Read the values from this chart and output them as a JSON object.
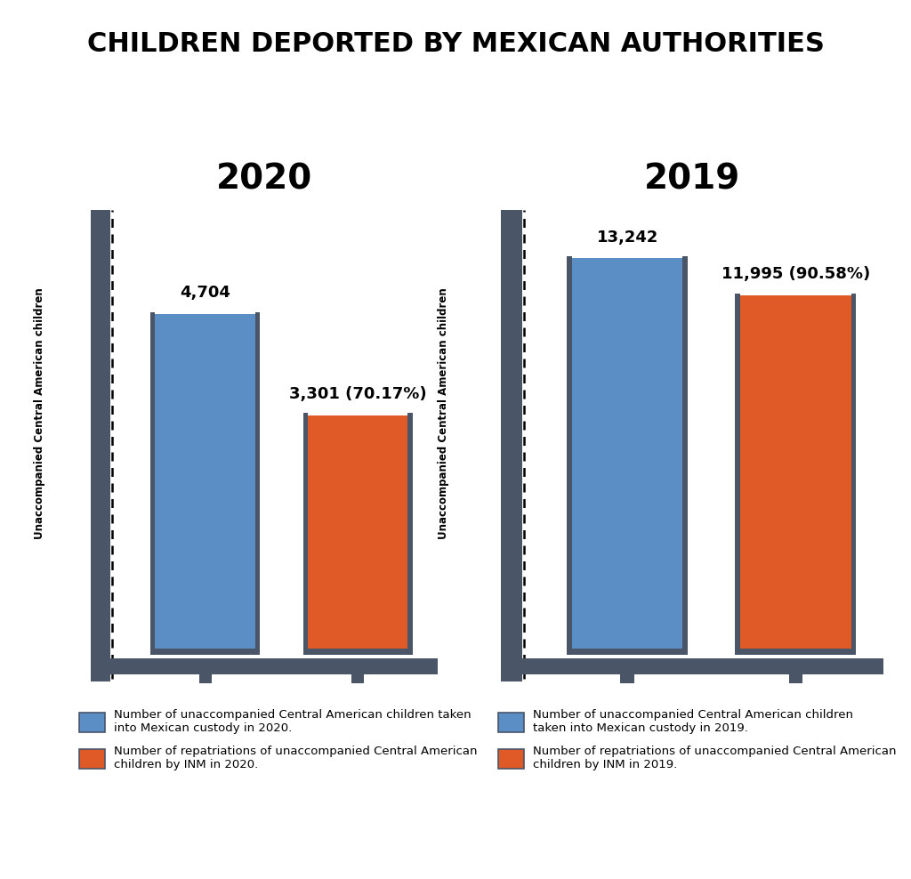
{
  "title": "CHILDREN DEPORTED BY MEXICAN AUTHORITIES",
  "title_fontsize": 22,
  "years": [
    "2020",
    "2019"
  ],
  "blue_values": [
    4704,
    13242
  ],
  "orange_values": [
    3301,
    11995
  ],
  "blue_labels": [
    "4,704",
    "13,242"
  ],
  "orange_labels": [
    "3,301 (70.17%)",
    "11,995 (90.58%)"
  ],
  "bar_color_blue": "#5b8ec4",
  "bar_color_orange": "#e05a28",
  "bar_edge_color": "#4a5568",
  "ylabel": "Unaccompanied Central American children",
  "year_fontsize": 28,
  "label_fontsize": 13,
  "legend_fontsize": 9.5,
  "background_color": "#ffffff",
  "legend_2020_blue": "Number of unaccompanied Central American children taken\ninto Mexican custody in 2020.",
  "legend_2020_orange": "Number of repatriations of unaccompanied Central American\nchildren by INM in 2020.",
  "legend_2019_blue": "Number of unaccompanied Central American children\ntaken into Mexican custody in 2019.",
  "legend_2019_orange": "Number of repatriations of unaccompanied Central American\nchildren by INM in 2019.",
  "scale_2020_max": 6000,
  "scale_2019_max": 14500
}
